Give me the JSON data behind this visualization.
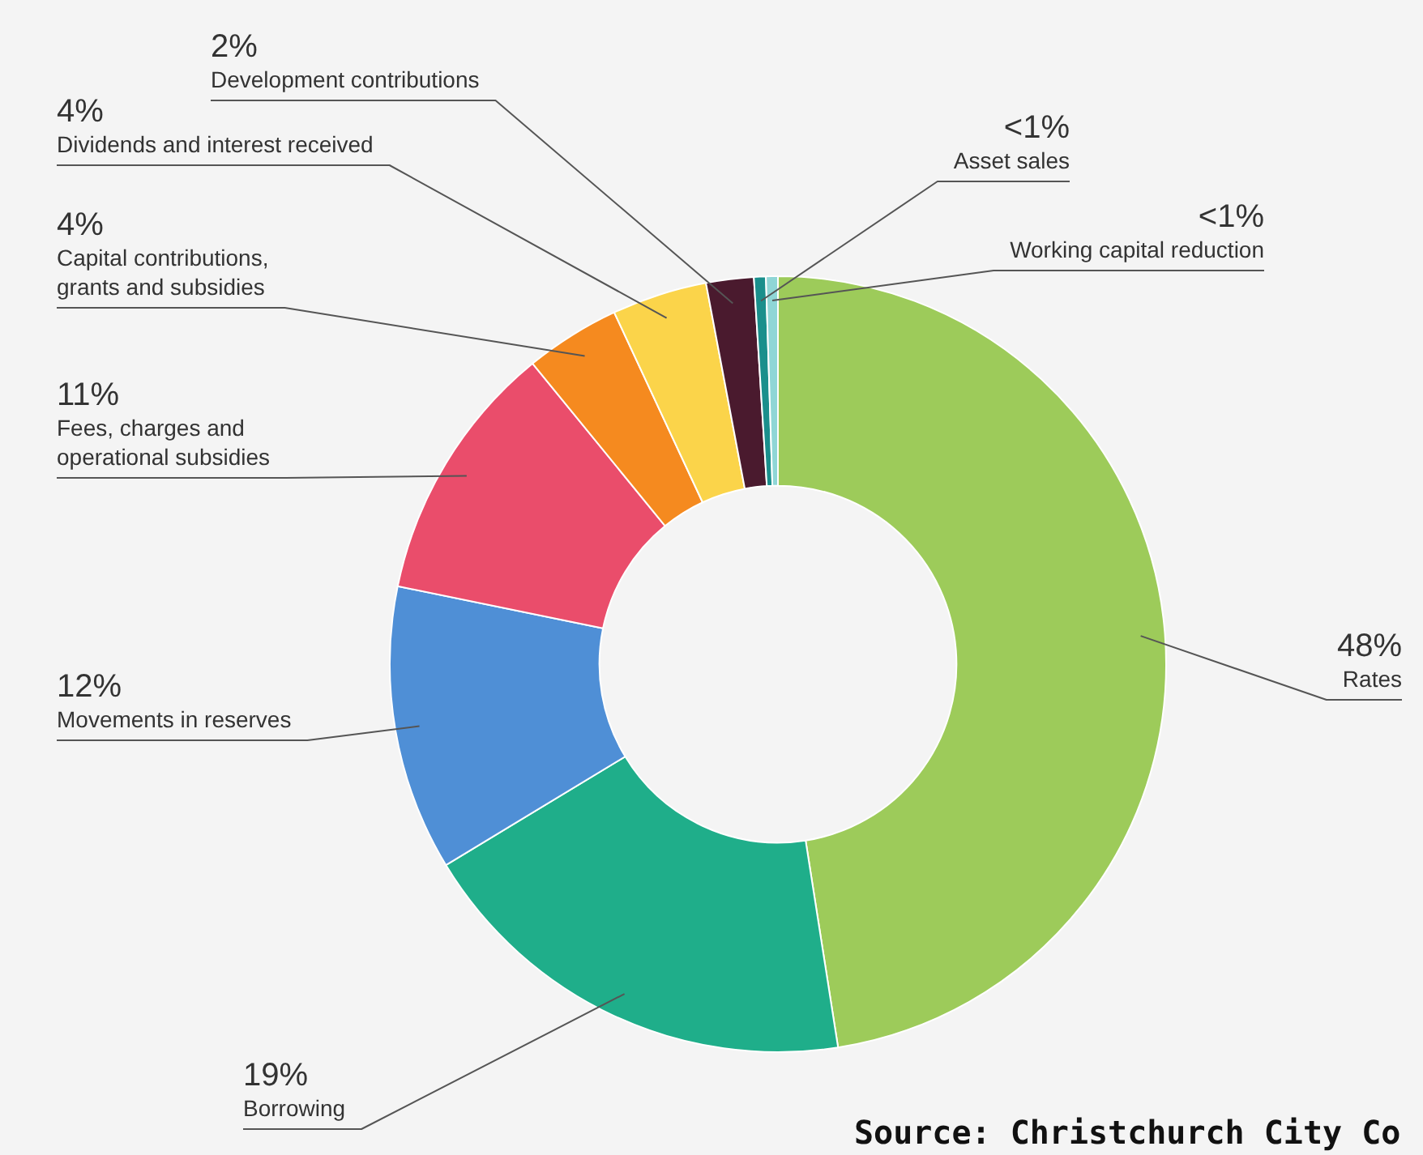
{
  "chart_data": {
    "type": "donut",
    "categories": [
      "Rates",
      "Borrowing",
      "Movements in reserves",
      "Fees, charges and operational subsidies",
      "Capital contributions, grants and subsidies",
      "Dividends and interest received",
      "Development contributions",
      "Asset sales",
      "Working capital reduction"
    ],
    "values": [
      48,
      19,
      12,
      11,
      4,
      4,
      2,
      0.5,
      0.5
    ],
    "value_labels": [
      "48%",
      "19%",
      "12%",
      "11%",
      "4%",
      "4%",
      "2%",
      "<1%",
      "<1%"
    ],
    "colors": [
      "#9dcb5a",
      "#1fae8a",
      "#4f8fd6",
      "#ea4d6b",
      "#f58a1f",
      "#fbd44a",
      "#4a1a2e",
      "#1a8f8c",
      "#8fd6d6"
    ],
    "legend": false,
    "annotations": [
      "Source: Christchurch City Co"
    ]
  }
}
